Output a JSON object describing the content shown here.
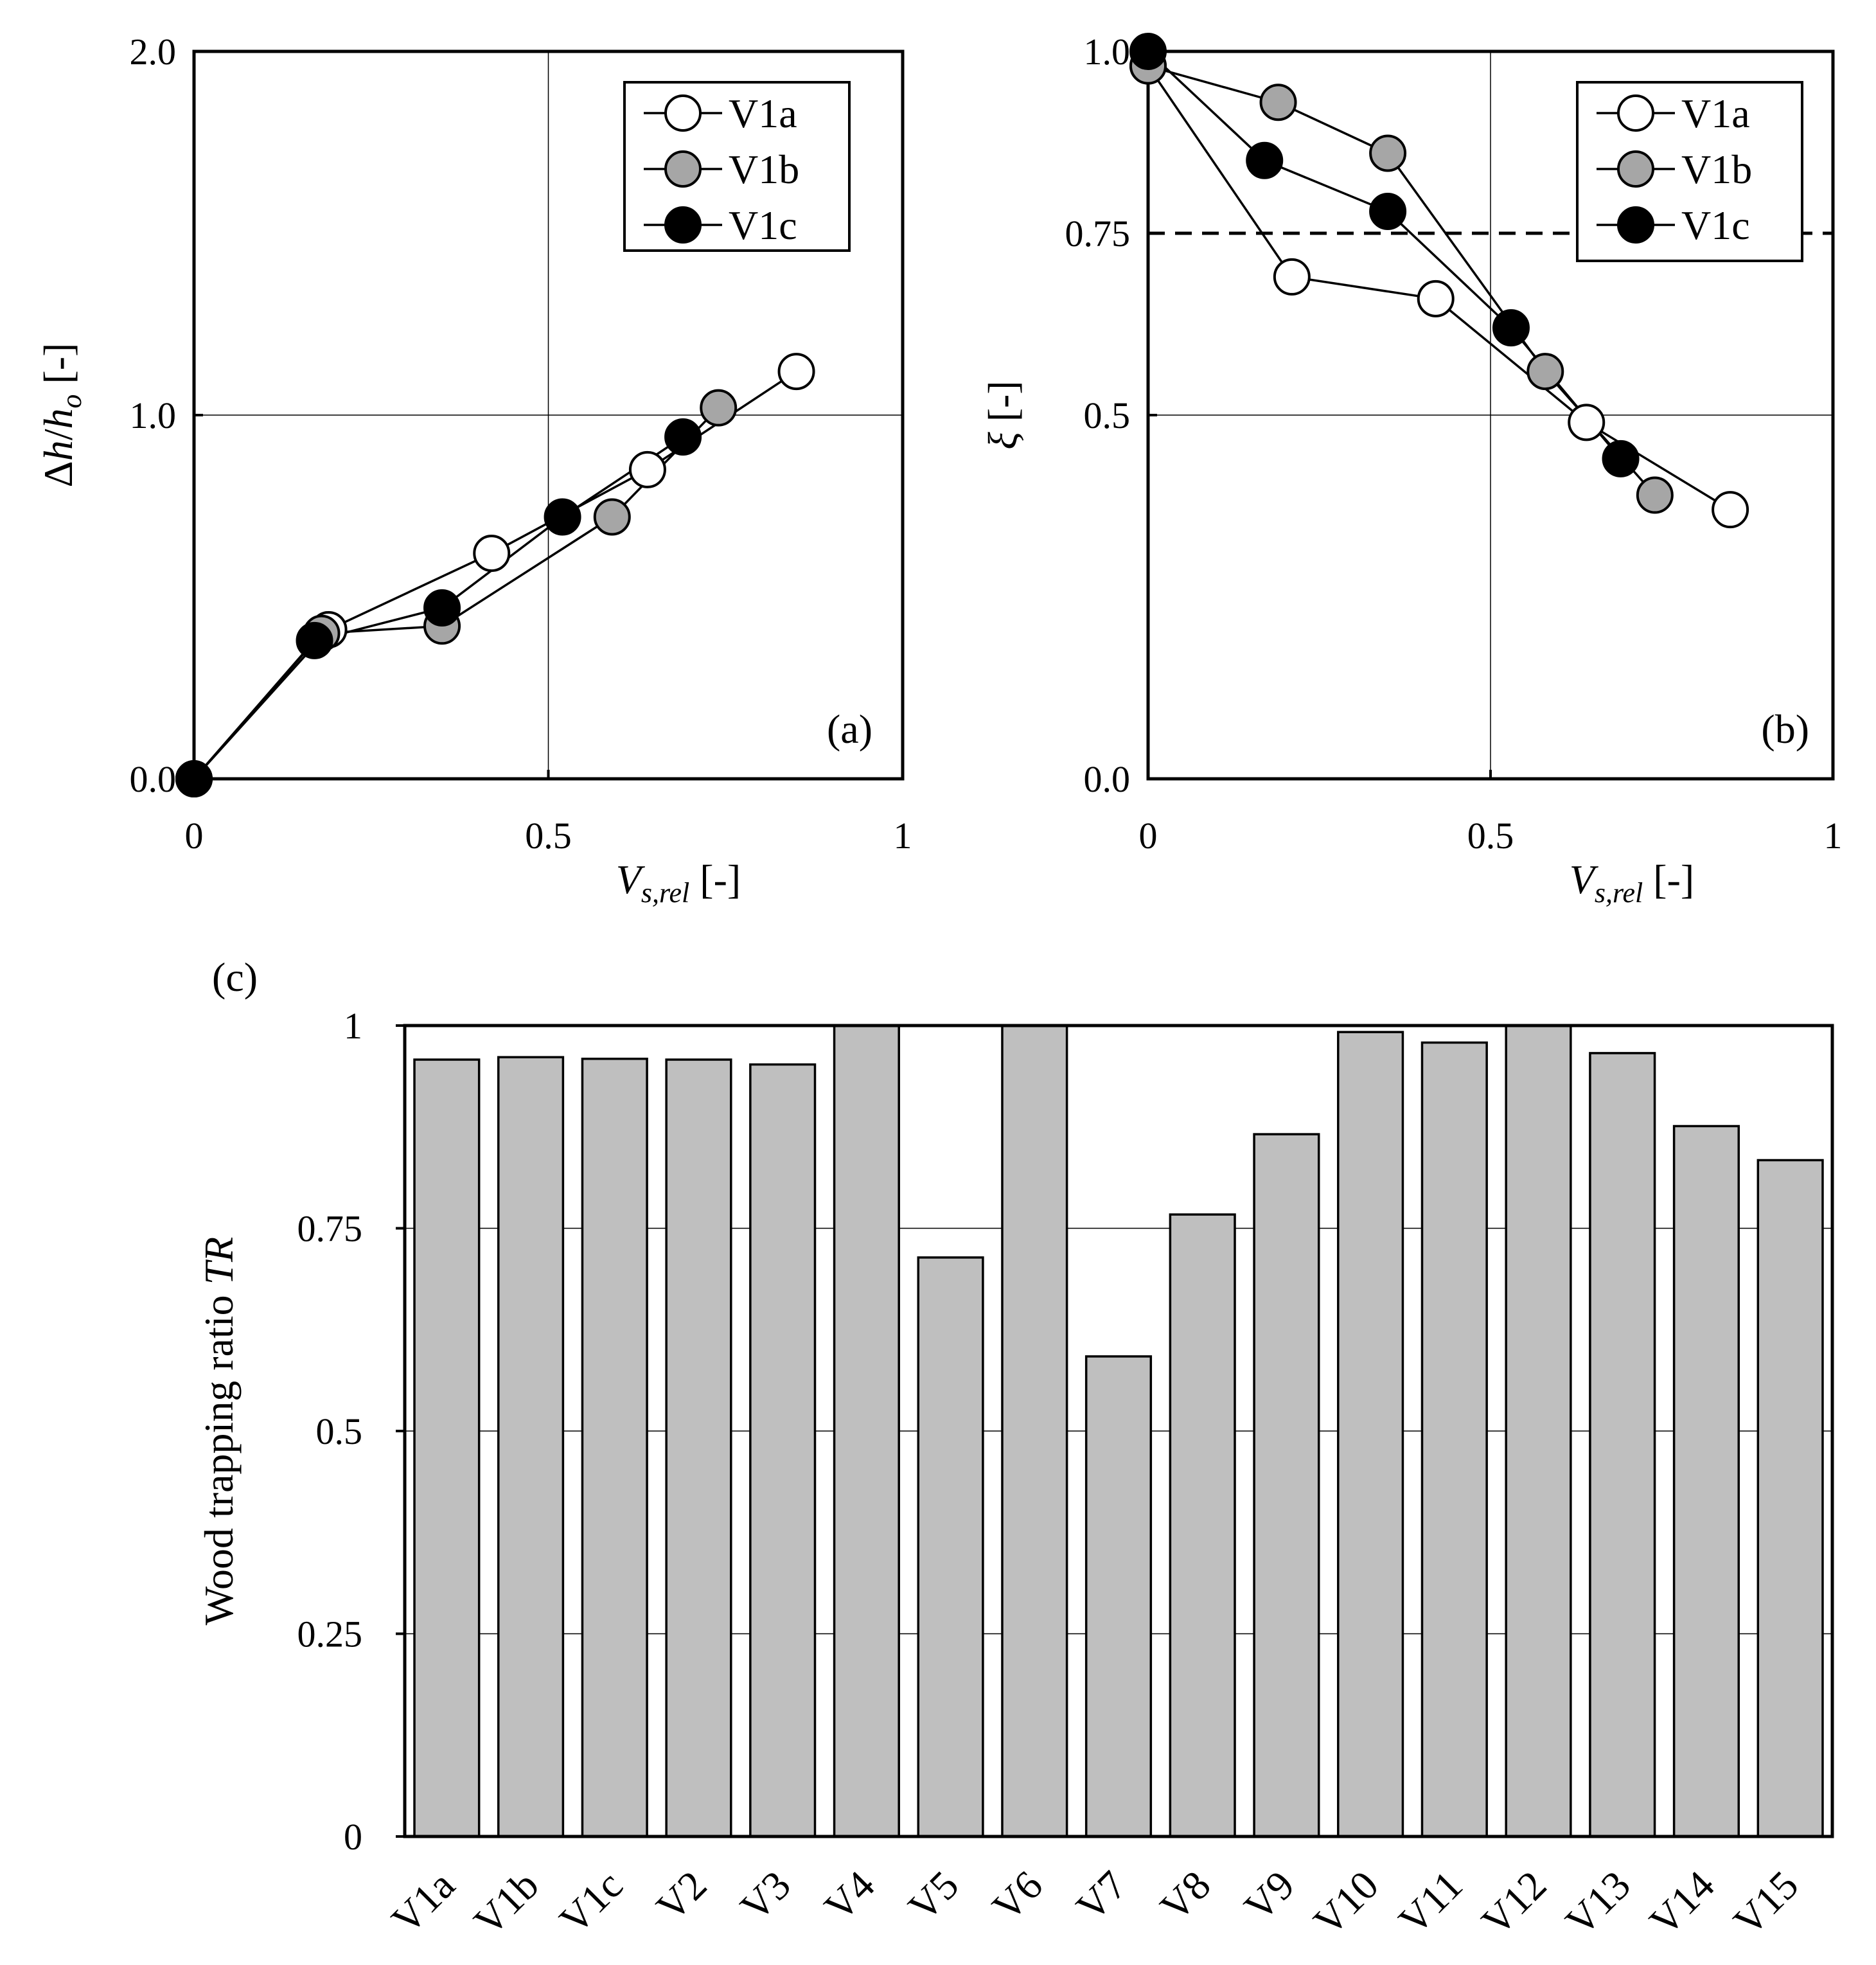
{
  "chart_data": [
    {
      "panel": "(a)",
      "type": "line",
      "ylabel_parts": [
        "Δ",
        "h",
        "/",
        "h",
        "o",
        " [-]"
      ],
      "xlabel_parts": [
        "V",
        "s,rel",
        " [-]"
      ],
      "xlim": [
        0,
        1
      ],
      "ylim": [
        0,
        2
      ],
      "xticks": [
        0,
        0.5,
        1
      ],
      "xtick_labels": [
        "0",
        "0.5",
        "1"
      ],
      "yticks": [
        0,
        1,
        2
      ],
      "ytick_labels": [
        "0.0",
        "1.0",
        "2.0"
      ],
      "grid": true,
      "legend_position": "top-right",
      "series": [
        {
          "name": "V1a",
          "marker_fill": "#ffffff",
          "x": [
            0,
            0.19,
            0.42,
            0.64,
            0.85
          ],
          "y": [
            0,
            0.41,
            0.62,
            0.85,
            1.12
          ]
        },
        {
          "name": "V1b",
          "marker_fill": "#a6a6a6",
          "x": [
            0,
            0.18,
            0.35,
            0.59,
            0.74
          ],
          "y": [
            0,
            0.4,
            0.42,
            0.72,
            1.02
          ]
        },
        {
          "name": "V1c",
          "marker_fill": "#000000",
          "x": [
            0,
            0.17,
            0.35,
            0.52,
            0.69
          ],
          "y": [
            0,
            0.38,
            0.47,
            0.72,
            0.94
          ]
        }
      ]
    },
    {
      "panel": "(b)",
      "type": "line",
      "ylabel_parts": [
        "ξ",
        " [-]"
      ],
      "xlabel_parts": [
        "V",
        "s,rel",
        " [-]"
      ],
      "xlim": [
        0,
        1
      ],
      "ylim": [
        0,
        1
      ],
      "xticks": [
        0,
        0.5,
        1
      ],
      "xtick_labels": [
        "0",
        "0.5",
        "1"
      ],
      "yticks": [
        0,
        0.5,
        0.75,
        1
      ],
      "ytick_labels": [
        "0.0",
        "0.5",
        "0.75",
        "1.0"
      ],
      "grid": true,
      "reference_line_y": 0.75,
      "legend_position": "top-right",
      "series": [
        {
          "name": "V1a",
          "marker_fill": "#ffffff",
          "x": [
            0,
            0.21,
            0.42,
            0.64,
            0.85
          ],
          "y": [
            0.98,
            0.69,
            0.66,
            0.49,
            0.37
          ]
        },
        {
          "name": "V1b",
          "marker_fill": "#a6a6a6",
          "x": [
            0,
            0.19,
            0.35,
            0.58,
            0.74
          ],
          "y": [
            0.98,
            0.93,
            0.86,
            0.56,
            0.39
          ]
        },
        {
          "name": "V1c",
          "marker_fill": "#000000",
          "x": [
            0,
            0.17,
            0.35,
            0.53,
            0.69
          ],
          "y": [
            1.0,
            0.85,
            0.78,
            0.62,
            0.44
          ]
        }
      ]
    },
    {
      "panel": "(c)",
      "type": "bar",
      "ylabel_parts": [
        "Wood trapping ratio ",
        "TR"
      ],
      "categories": [
        "V1a",
        "V1b",
        "V1c",
        "V2",
        "V3",
        "V4",
        "V5",
        "V6",
        "V7",
        "V8",
        "V9",
        "V10",
        "V11",
        "V12",
        "V13",
        "V14",
        "V15"
      ],
      "values": [
        0.958,
        0.961,
        0.959,
        0.958,
        0.952,
        1.0,
        0.714,
        1.0,
        0.592,
        0.767,
        0.866,
        0.992,
        0.979,
        1.0,
        0.966,
        0.876,
        0.834
      ],
      "bar_color": "#bfbfbf",
      "ylim": [
        0,
        1
      ],
      "yticks": [
        0,
        0.25,
        0.5,
        0.75,
        1
      ],
      "ytick_labels": [
        "0",
        "0.25",
        "0.5",
        "0.75",
        "1"
      ],
      "grid": true
    }
  ]
}
